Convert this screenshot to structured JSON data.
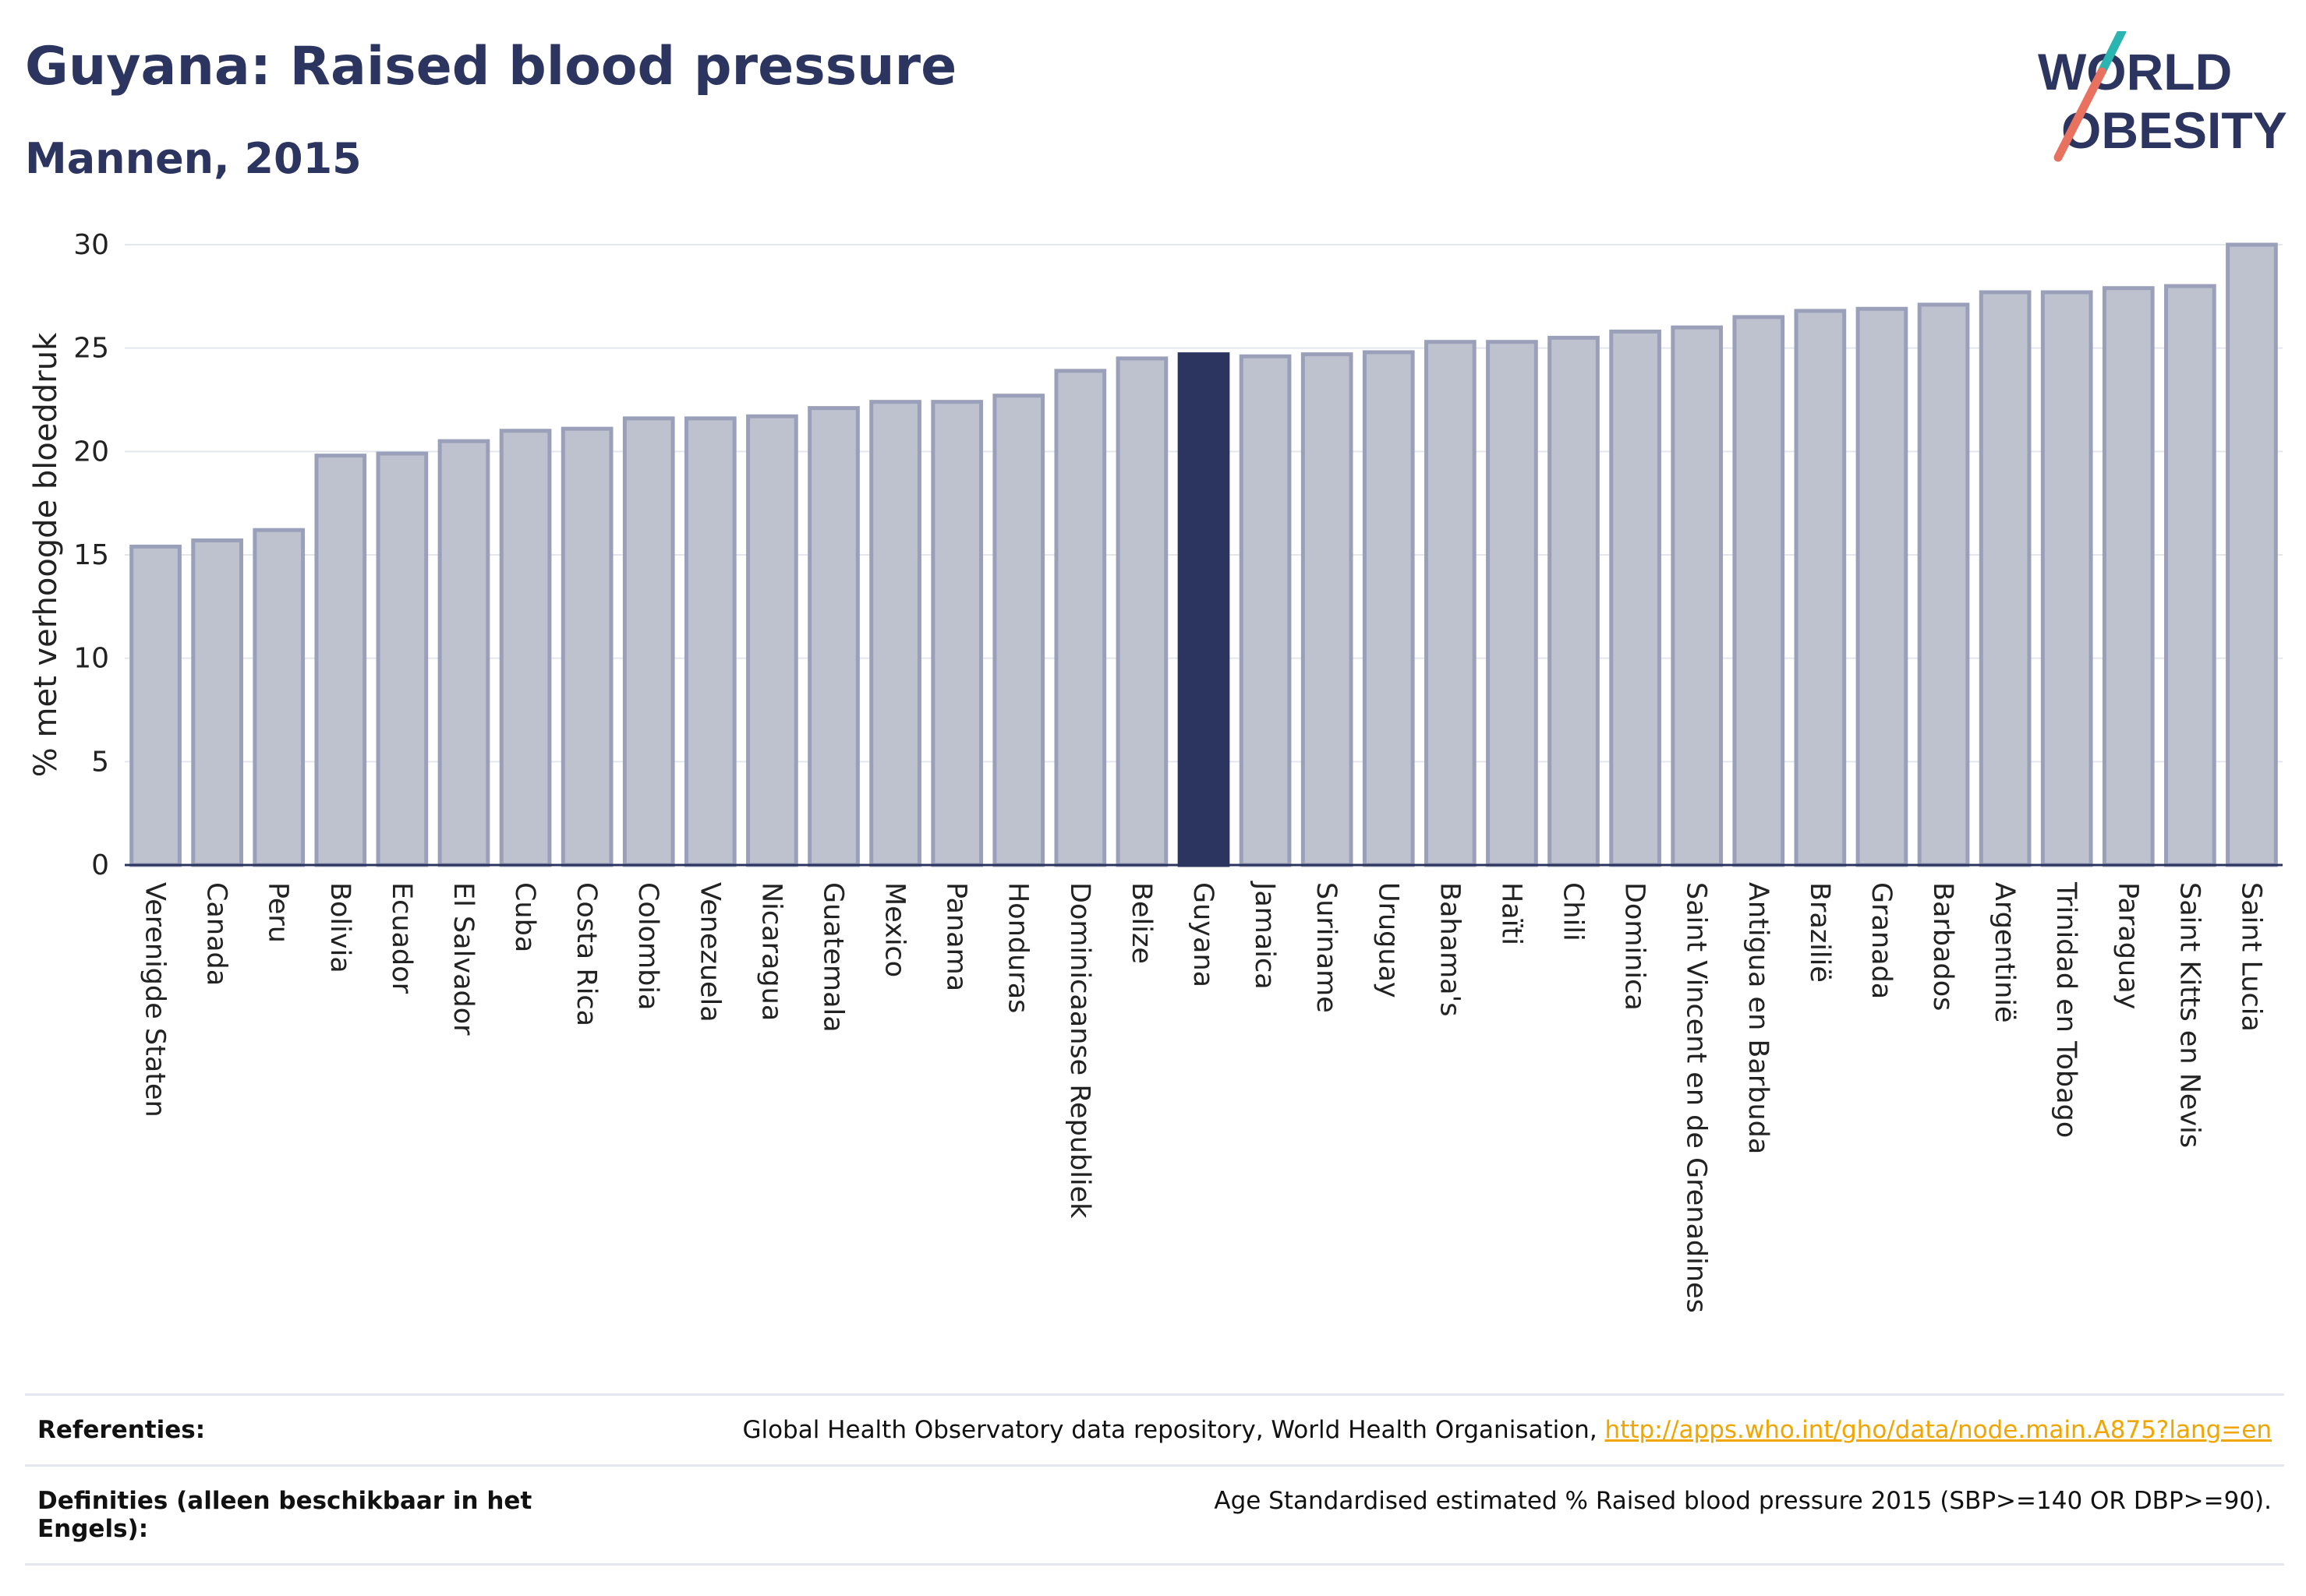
{
  "header": {
    "title": "Guyana: Raised blood pressure",
    "subtitle": "Mannen, 2015"
  },
  "logo": {
    "line1": "WORLD",
    "line2": "OBESITY"
  },
  "colors": {
    "highlight": "#2c3560",
    "bar": "#bec1ce",
    "bar_stroke": "#9aa0b9",
    "text": "#2c3560",
    "grid": "#e4e6ee"
  },
  "chart_data": {
    "type": "bar",
    "title": "Guyana: Raised blood pressure",
    "subtitle": "Mannen, 2015",
    "ylabel": "% met verhoogde bloeddruk",
    "ylim": [
      0,
      30
    ],
    "yticks": [
      0,
      5,
      10,
      15,
      20,
      25,
      30
    ],
    "grid": true,
    "highlight": "Guyana",
    "categories": [
      "Verenigde Staten",
      "Canada",
      "Peru",
      "Bolivia",
      "Ecuador",
      "El Salvador",
      "Cuba",
      "Costa Rica",
      "Colombia",
      "Venezuela",
      "Nicaragua",
      "Guatemala",
      "Mexico",
      "Panama",
      "Honduras",
      "Dominicaanse Republiek",
      "Belize",
      "Guyana",
      "Jamaica",
      "Suriname",
      "Uruguay",
      "Bahama's",
      "Haïti",
      "Chili",
      "Dominica",
      "Saint Vincent en de Grenadines",
      "Antigua en Barbuda",
      "Brazilië",
      "Granada",
      "Barbados",
      "Argentinië",
      "Trinidad en Tobago",
      "Paraguay",
      "Saint Kitts en Nevis",
      "Saint Lucia"
    ],
    "values": [
      15.4,
      15.7,
      16.2,
      19.8,
      19.9,
      20.5,
      21.0,
      21.1,
      21.6,
      21.6,
      21.7,
      22.1,
      22.4,
      22.4,
      22.7,
      23.9,
      24.5,
      24.7,
      24.6,
      24.7,
      24.8,
      25.3,
      25.3,
      25.5,
      25.8,
      26.0,
      26.5,
      26.8,
      26.9,
      27.1,
      27.7,
      27.7,
      27.9,
      28.0,
      30.0
    ]
  },
  "references": {
    "ref_label": "Referenties:",
    "ref_text": "Global Health Observatory data repository, World Health Organisation, ",
    "ref_link": "http://apps.who.int/gho/data/node.main.A875?lang=en",
    "def_label": "Definities (alleen beschikbaar in het Engels):",
    "def_text": "Age Standardised estimated % Raised blood pressure 2015 (SBP>=140 OR DBP>=90)."
  }
}
